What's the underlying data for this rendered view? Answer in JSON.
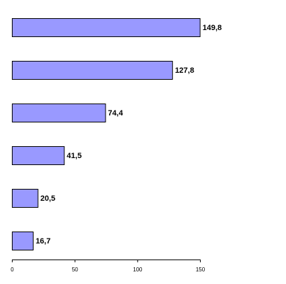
{
  "chart_data": {
    "type": "bar",
    "orientation": "horizontal",
    "values": [
      149.8,
      127.8,
      74.4,
      41.5,
      20.5,
      16.7
    ],
    "data_labels": [
      "149,8",
      "127,8",
      "74,4",
      "41,5",
      "20,5",
      "16,7"
    ],
    "x_ticks": [
      0,
      50,
      100,
      150
    ],
    "x_tick_labels": [
      "0",
      "50",
      "100",
      "150"
    ],
    "xlim": [
      0,
      150
    ],
    "grid": false,
    "legend": "none",
    "title": "",
    "xlabel": "",
    "ylabel": ""
  },
  "colors": {
    "bar_fill": "#9999ff",
    "bar_stroke": "#000000",
    "axis": "#000000"
  }
}
